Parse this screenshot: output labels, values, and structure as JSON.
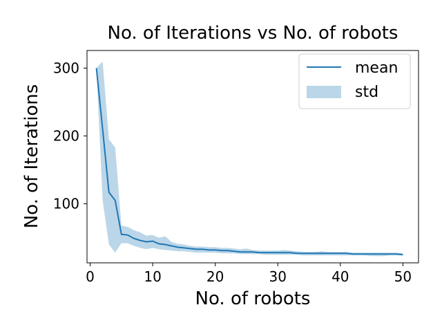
{
  "chart_data": {
    "type": "line",
    "title": "No. of Iterations vs No. of robots",
    "xlabel": "No. of robots",
    "ylabel": "No. of Iterations",
    "xlim": [
      -0.5,
      52.5
    ],
    "ylim": [
      13,
      326
    ],
    "xticks": [
      0,
      10,
      20,
      30,
      40,
      50
    ],
    "yticks": [
      100,
      200,
      300
    ],
    "grid": false,
    "legend": {
      "position": "top-right",
      "entries": [
        "mean",
        "std"
      ]
    },
    "colors": {
      "line": "#1f77b4",
      "band": "#1f77b4"
    },
    "x": [
      1,
      2,
      3,
      4,
      5,
      6,
      7,
      8,
      9,
      10,
      11,
      12,
      13,
      14,
      15,
      16,
      17,
      18,
      19,
      20,
      21,
      22,
      23,
      24,
      25,
      26,
      27,
      28,
      29,
      30,
      31,
      32,
      33,
      34,
      35,
      36,
      37,
      38,
      39,
      40,
      41,
      42,
      43,
      44,
      45,
      46,
      47,
      48,
      49,
      50
    ],
    "series": [
      {
        "name": "mean",
        "values": [
          300,
          210,
          117,
          105,
          55,
          54,
          49,
          46,
          44,
          45,
          41,
          40,
          38,
          36,
          35,
          34,
          33,
          33,
          32,
          32,
          31,
          31,
          30,
          29,
          29,
          29,
          28,
          28,
          28,
          28,
          28,
          28,
          27,
          27,
          27,
          27,
          27,
          27,
          27,
          27,
          27,
          26,
          26,
          26,
          26,
          26,
          26,
          26,
          26,
          25
        ]
      },
      {
        "name": "std",
        "lower": [
          300,
          105,
          40,
          28,
          42,
          42,
          38,
          35,
          33,
          35,
          33,
          32,
          31,
          30,
          30,
          29,
          28,
          28,
          28,
          28,
          27,
          27,
          27,
          26,
          26,
          26,
          26,
          25,
          25,
          25,
          25,
          25,
          25,
          24,
          24,
          24,
          24,
          24,
          24,
          24,
          24,
          24,
          24,
          24,
          23,
          23,
          23,
          24,
          24,
          24
        ],
        "upper": [
          300,
          310,
          195,
          183,
          68,
          66,
          61,
          58,
          53,
          54,
          50,
          52,
          44,
          41,
          40,
          38,
          37,
          37,
          36,
          36,
          35,
          35,
          34,
          33,
          34,
          32,
          31,
          31,
          31,
          31,
          32,
          31,
          30,
          29,
          29,
          29,
          30,
          29,
          29,
          29,
          29,
          28,
          28,
          28,
          28,
          28,
          28,
          28,
          28,
          27
        ]
      }
    ]
  }
}
